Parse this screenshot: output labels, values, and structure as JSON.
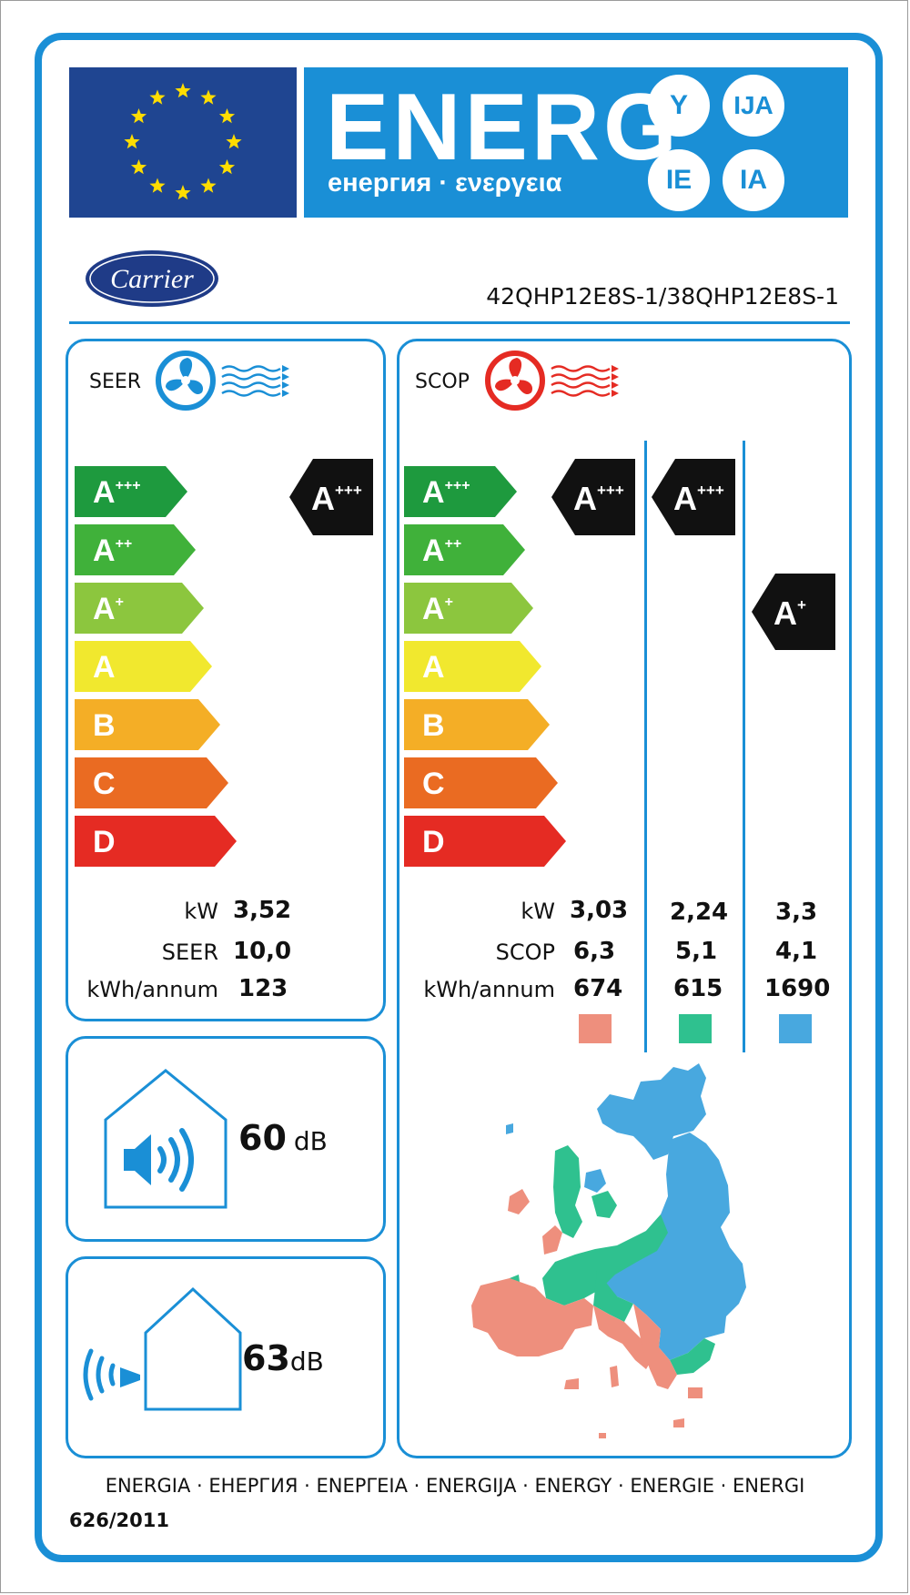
{
  "header": {
    "energ": "ENERG",
    "energ_sub": "енергия · ενεργεια",
    "circles": [
      "Y",
      "IJA",
      "IE",
      "IA"
    ]
  },
  "brand": {
    "logo_text": "Carrier",
    "model": "42QHP12E8S-1/38QHP12E8S-1"
  },
  "classes": [
    {
      "letter": "A",
      "sup": "+++",
      "color": "#1e9a3e"
    },
    {
      "letter": "A",
      "sup": "++",
      "color": "#40b13a"
    },
    {
      "letter": "A",
      "sup": "+",
      "color": "#8cc63e"
    },
    {
      "letter": "A",
      "sup": "",
      "color": "#f1e82e"
    },
    {
      "letter": "B",
      "sup": "",
      "color": "#f4ae26"
    },
    {
      "letter": "C",
      "sup": "",
      "color": "#ea6b22"
    },
    {
      "letter": "D",
      "sup": "",
      "color": "#e52b23"
    }
  ],
  "seer": {
    "title": "SEER",
    "rating": {
      "letter": "A",
      "sup": "+++"
    },
    "rows": [
      {
        "label": "kW",
        "value": "3,52"
      },
      {
        "label": "SEER",
        "value": "10,0"
      },
      {
        "label": "kWh/annum",
        "value": "123"
      }
    ]
  },
  "scop": {
    "title": "SCOP",
    "labels": [
      "kW",
      "SCOP",
      "kWh/annum"
    ],
    "zones": [
      {
        "rating": {
          "letter": "A",
          "sup": "+++"
        },
        "values": [
          "3,03",
          "6,3",
          "674"
        ],
        "color": "#ee8f7d"
      },
      {
        "rating": {
          "letter": "A",
          "sup": "+++"
        },
        "values": [
          "2,24",
          "5,1",
          "615"
        ],
        "color": "#2fc18f"
      },
      {
        "rating": {
          "letter": "A",
          "sup": "+"
        },
        "values": [
          "3,3",
          "4,1",
          "1690"
        ],
        "color": "#48a8df"
      }
    ]
  },
  "noise": {
    "indoor": {
      "value": "60",
      "unit": "dB"
    },
    "outdoor": {
      "value": "63",
      "unit": "dB"
    }
  },
  "footer": {
    "text": "ENERGIA · ЕНЕРГИЯ · ΕΝΕΡΓΕΙΑ · ENERGIJA · ENERGY · ENERGIE · ENERGI",
    "regulation": "626/2011"
  },
  "colors": {
    "blue": "#1a8fd6",
    "flag_blue": "#1f4591",
    "star": "#ffdd00",
    "rating_black": "#111111"
  }
}
